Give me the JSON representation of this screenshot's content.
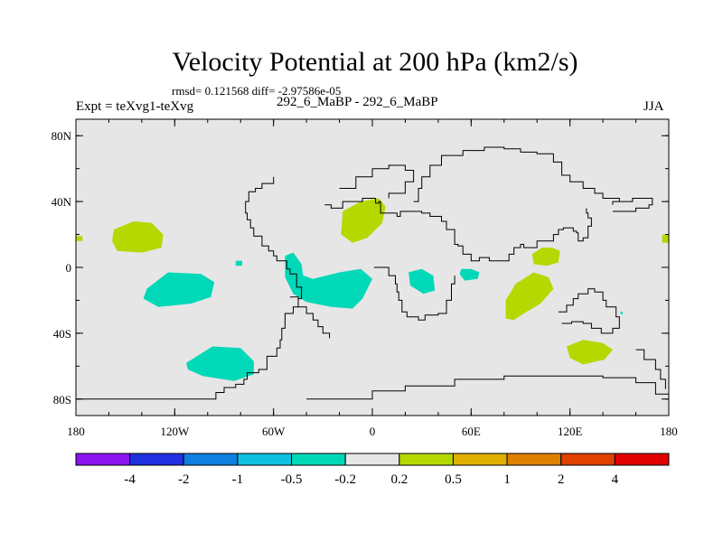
{
  "title": "Velocity Potential at 200 hPa (km2/s)",
  "stats_line": "rmsd= 0.121568 diff= -2.97586e-05",
  "left_label": "Expt = teXvg1-teXvg",
  "center_label": "292_6_MaBP - 292_6_MaBP",
  "right_label": "JJA",
  "colors": {
    "background": "#e6e6e6",
    "coast": "#000000",
    "neg_small": "#00d8b8",
    "pos_small": "#b4d800"
  },
  "map": {
    "lon_range": [
      -180,
      180
    ],
    "lat_range": [
      -90,
      90
    ],
    "lat_ticks": [
      {
        "value": 80,
        "label": "80N"
      },
      {
        "value": 40,
        "label": "40N"
      },
      {
        "value": 0,
        "label": "0"
      },
      {
        "value": -40,
        "label": "40S"
      },
      {
        "value": -80,
        "label": "80S"
      }
    ],
    "lon_ticks": [
      {
        "value": -180,
        "label": "180"
      },
      {
        "value": -120,
        "label": "120W"
      },
      {
        "value": -60,
        "label": "60W"
      },
      {
        "value": 0,
        "label": "0"
      },
      {
        "value": 60,
        "label": "60E"
      },
      {
        "value": 120,
        "label": "120E"
      },
      {
        "value": 180,
        "label": "180"
      }
    ]
  },
  "anomalies": [
    {
      "name": "neg-anomaly-south-pacific",
      "sign": "negative",
      "points": [
        [
          -137,
          -13
        ],
        [
          -124,
          -3
        ],
        [
          -104,
          -4
        ],
        [
          -96,
          -9
        ],
        [
          -98,
          -18
        ],
        [
          -110,
          -22
        ],
        [
          -130,
          -24
        ],
        [
          -139,
          -19
        ]
      ]
    },
    {
      "name": "neg-anomaly-southeast-pacific",
      "sign": "negative",
      "points": [
        [
          -113,
          -58
        ],
        [
          -97,
          -48
        ],
        [
          -80,
          -49
        ],
        [
          -72,
          -57
        ],
        [
          -72,
          -65
        ],
        [
          -84,
          -69
        ],
        [
          -103,
          -66
        ],
        [
          -112,
          -62
        ]
      ]
    },
    {
      "name": "neg-anomaly-south-america",
      "sign": "negative",
      "points": [
        [
          -53,
          7
        ],
        [
          -48,
          9
        ],
        [
          -43,
          2
        ],
        [
          -42,
          -5
        ],
        [
          -36,
          -7
        ],
        [
          -20,
          -3
        ],
        [
          -7,
          -1
        ],
        [
          0,
          -7
        ],
        [
          -6,
          -19
        ],
        [
          -12,
          -25
        ],
        [
          -25,
          -24
        ],
        [
          -40,
          -21
        ],
        [
          -48,
          -16
        ],
        [
          -53,
          -6
        ]
      ]
    },
    {
      "name": "neg-anomaly-central-africa",
      "sign": "negative",
      "points": [
        [
          22,
          -3
        ],
        [
          30,
          -1
        ],
        [
          37,
          -5
        ],
        [
          38,
          -14
        ],
        [
          31,
          -16
        ],
        [
          23,
          -11
        ]
      ]
    },
    {
      "name": "neg-anomaly-indian-ocean",
      "sign": "negative",
      "points": [
        [
          54,
          -1
        ],
        [
          60,
          -1
        ],
        [
          65,
          -3
        ],
        [
          64,
          -7
        ],
        [
          56,
          -8
        ],
        [
          53,
          -4
        ]
      ]
    },
    {
      "name": "neg-anomaly-small-pacific",
      "sign": "negative",
      "points": [
        [
          -83,
          4
        ],
        [
          -79,
          4
        ],
        [
          -79,
          1
        ],
        [
          -83,
          1
        ]
      ]
    },
    {
      "name": "pos-anomaly-north-pacific",
      "sign": "positive",
      "points": [
        [
          -157,
          23
        ],
        [
          -145,
          28
        ],
        [
          -134,
          27
        ],
        [
          -127,
          20
        ],
        [
          -128,
          12
        ],
        [
          -140,
          9
        ],
        [
          -155,
          10
        ],
        [
          -158,
          16
        ]
      ]
    },
    {
      "name": "pos-anomaly-north-africa",
      "sign": "positive",
      "points": [
        [
          -18,
          34
        ],
        [
          -7,
          40
        ],
        [
          4,
          42
        ],
        [
          8,
          37
        ],
        [
          6,
          27
        ],
        [
          -3,
          18
        ],
        [
          -12,
          15
        ],
        [
          -19,
          20
        ]
      ]
    },
    {
      "name": "pos-anomaly-west-pacific",
      "sign": "positive",
      "points": [
        [
          81,
          -20
        ],
        [
          87,
          -10
        ],
        [
          98,
          -3
        ],
        [
          107,
          -6
        ],
        [
          110,
          -13
        ],
        [
          102,
          -22
        ],
        [
          92,
          -28
        ],
        [
          86,
          -32
        ],
        [
          81,
          -31
        ]
      ]
    },
    {
      "name": "pos-anomaly-southeast-asia",
      "sign": "positive",
      "points": [
        [
          97,
          8
        ],
        [
          103,
          12
        ],
        [
          109,
          12
        ],
        [
          114,
          10
        ],
        [
          113,
          3
        ],
        [
          106,
          1
        ],
        [
          98,
          2
        ]
      ]
    },
    {
      "name": "pos-anomaly-south-pacific",
      "sign": "positive",
      "points": [
        [
          118,
          -48
        ],
        [
          128,
          -44
        ],
        [
          140,
          -46
        ],
        [
          146,
          -50
        ],
        [
          141,
          -56
        ],
        [
          128,
          -59
        ],
        [
          120,
          -55
        ]
      ]
    },
    {
      "name": "pos-anomaly-left-edge",
      "sign": "positive",
      "points": [
        [
          -180,
          19
        ],
        [
          -176,
          19
        ],
        [
          -176,
          16
        ],
        [
          -180,
          16
        ]
      ]
    },
    {
      "name": "pos-anomaly-right-edge",
      "sign": "positive",
      "points": [
        [
          176,
          20
        ],
        [
          180,
          20
        ],
        [
          180,
          15
        ],
        [
          176,
          15
        ]
      ]
    },
    {
      "name": "neg-anomaly-tiny-east",
      "sign": "negative",
      "points": [
        [
          150,
          -27
        ],
        [
          152,
          -27
        ],
        [
          152,
          -29
        ]
      ]
    }
  ],
  "coastlines": [
    {
      "name": "americas-coast",
      "points": [
        [
          -180,
          -80
        ],
        [
          -110,
          -80
        ],
        [
          -97,
          -80
        ],
        [
          -95,
          -76
        ],
        [
          -90,
          -73
        ],
        [
          -83,
          -71
        ],
        [
          -78,
          -68
        ],
        [
          -76,
          -64
        ],
        [
          -69,
          -62
        ],
        [
          -64,
          -54
        ],
        [
          -58,
          -49
        ],
        [
          -56,
          -44
        ],
        [
          -55,
          -37
        ],
        [
          -53,
          -28
        ],
        [
          -48,
          -24
        ],
        [
          -45,
          -19
        ],
        [
          -43,
          -12
        ],
        [
          -46,
          -4
        ],
        [
          -50,
          -1
        ],
        [
          -52,
          4
        ],
        [
          -58,
          7
        ],
        [
          -60,
          10
        ],
        [
          -63,
          13
        ],
        [
          -67,
          19
        ],
        [
          -72,
          24
        ],
        [
          -74,
          29
        ],
        [
          -76,
          33
        ],
        [
          -77,
          40
        ],
        [
          -75,
          46
        ],
        [
          -71,
          48
        ],
        [
          -67,
          51
        ],
        [
          -60,
          55
        ]
      ]
    },
    {
      "name": "south-america-west-coast",
      "points": [
        [
          -50,
          -18
        ],
        [
          -45,
          -24
        ],
        [
          -40,
          -28
        ],
        [
          -36,
          -32
        ],
        [
          -33,
          -36
        ],
        [
          -30,
          -40
        ],
        [
          -26,
          -43
        ]
      ]
    },
    {
      "name": "africa-europe-coast",
      "points": [
        [
          -29,
          38
        ],
        [
          -26,
          38
        ],
        [
          -25,
          36
        ],
        [
          -19,
          36
        ],
        [
          -18,
          40
        ],
        [
          -10,
          40
        ],
        [
          -6,
          42
        ],
        [
          1,
          42
        ],
        [
          2,
          39
        ],
        [
          4,
          40
        ],
        [
          5,
          33
        ],
        [
          15,
          31
        ],
        [
          17,
          34
        ],
        [
          30,
          33
        ],
        [
          35,
          31
        ],
        [
          42,
          28
        ],
        [
          45,
          23
        ],
        [
          50,
          14
        ],
        [
          52,
          13
        ],
        [
          55,
          8
        ],
        [
          60,
          4
        ],
        [
          65,
          6
        ],
        [
          71,
          4
        ],
        [
          80,
          4
        ],
        [
          83,
          8
        ],
        [
          86,
          12
        ],
        [
          90,
          14
        ],
        [
          92,
          12
        ],
        [
          98,
          12
        ],
        [
          100,
          16
        ],
        [
          108,
          16
        ],
        [
          110,
          20
        ],
        [
          113,
          23
        ],
        [
          116,
          24
        ],
        [
          119,
          24
        ],
        [
          122,
          22
        ],
        [
          124,
          21
        ],
        [
          125,
          16
        ],
        [
          128,
          18
        ],
        [
          131,
          25
        ],
        [
          133,
          30
        ],
        [
          131,
          33
        ],
        [
          130,
          36
        ]
      ]
    },
    {
      "name": "africa-south-coast",
      "points": [
        [
          1,
          0
        ],
        [
          10,
          -5
        ],
        [
          14,
          -10
        ],
        [
          15,
          -15
        ],
        [
          16,
          -20
        ],
        [
          18,
          -27
        ],
        [
          21,
          -30
        ],
        [
          28,
          -32
        ],
        [
          32,
          -29
        ],
        [
          40,
          -28
        ],
        [
          45,
          -20
        ],
        [
          48,
          -10
        ],
        [
          50,
          -5
        ]
      ]
    },
    {
      "name": "australia-coast",
      "points": [
        [
          113,
          -27
        ],
        [
          118,
          -23
        ],
        [
          122,
          -19
        ],
        [
          125,
          -16
        ],
        [
          131,
          -13
        ],
        [
          135,
          -15
        ],
        [
          140,
          -20
        ],
        [
          142,
          -24
        ],
        [
          148,
          -30
        ],
        [
          150,
          -37
        ],
        [
          146,
          -40
        ],
        [
          139,
          -37
        ],
        [
          133,
          -34
        ],
        [
          128,
          -33
        ],
        [
          121,
          -34
        ],
        [
          115,
          -34
        ]
      ]
    },
    {
      "name": "antarctica-coast",
      "points": [
        [
          -40,
          -80
        ],
        [
          -20,
          -80
        ],
        [
          0,
          -75
        ],
        [
          20,
          -72
        ],
        [
          50,
          -68
        ],
        [
          80,
          -66
        ],
        [
          110,
          -66
        ],
        [
          140,
          -67
        ],
        [
          160,
          -70
        ],
        [
          172,
          -77
        ],
        [
          180,
          -80
        ]
      ]
    },
    {
      "name": "asia-north-coast",
      "points": [
        [
          25,
          40
        ],
        [
          28,
          48
        ],
        [
          30,
          55
        ],
        [
          35,
          62
        ],
        [
          42,
          68
        ],
        [
          55,
          71
        ],
        [
          68,
          73
        ],
        [
          80,
          72
        ],
        [
          90,
          70
        ],
        [
          100,
          69
        ],
        [
          110,
          64
        ],
        [
          115,
          56
        ],
        [
          120,
          52
        ],
        [
          128,
          48
        ],
        [
          135,
          45
        ],
        [
          140,
          42
        ],
        [
          150,
          40
        ]
      ]
    },
    {
      "name": "greenland-coast",
      "points": [
        [
          -20,
          48
        ],
        [
          -10,
          55
        ],
        [
          0,
          60
        ],
        [
          10,
          62
        ],
        [
          20,
          59
        ],
        [
          25,
          52
        ],
        [
          20,
          45
        ],
        [
          10,
          42
        ]
      ]
    },
    {
      "name": "kamchatka-coast",
      "points": [
        [
          146,
          34
        ],
        [
          160,
          36
        ],
        [
          168,
          38
        ],
        [
          170,
          40
        ],
        [
          170,
          42
        ],
        [
          158,
          40
        ],
        [
          146,
          38
        ]
      ]
    },
    {
      "name": "east-pacific-coast",
      "points": [
        [
          160,
          -50
        ],
        [
          165,
          -56
        ],
        [
          172,
          -62
        ],
        [
          175,
          -68
        ],
        [
          178,
          -74
        ]
      ]
    }
  ],
  "colorbar": {
    "colors": [
      "#8c14f0",
      "#2030e0",
      "#1080e0",
      "#10c0e0",
      "#00d8b8",
      "#e6e6e6",
      "#b4d800",
      "#e0b000",
      "#e08000",
      "#e04000",
      "#e00000"
    ],
    "labels": [
      "-4",
      "-2",
      "-1",
      "-0.5",
      "-0.2",
      "0.2",
      "0.5",
      "1",
      "2",
      "4"
    ]
  }
}
